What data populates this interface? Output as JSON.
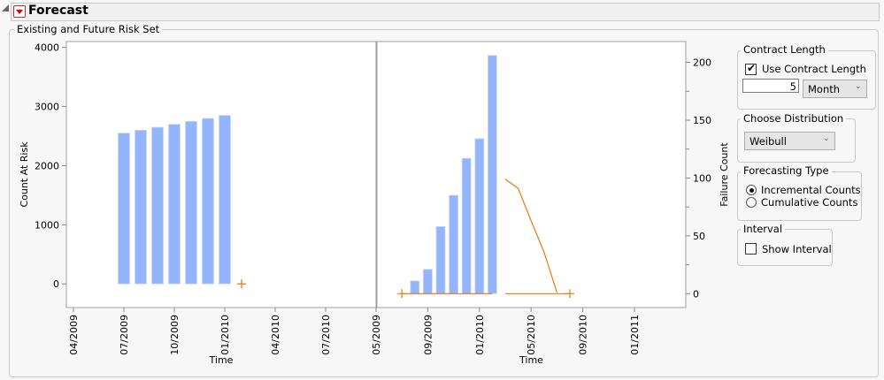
{
  "header": {
    "title": "Forecast"
  },
  "group_title": "Existing and Future Risk Set",
  "controls": {
    "contract_length": {
      "title": "Contract Length",
      "use_label": "Use Contract Length",
      "checked": true,
      "value": "5",
      "unit": "Month"
    },
    "distribution": {
      "title": "Choose Distribution",
      "selected": "Weibull"
    },
    "forecasting_type": {
      "title": "Forecasting Type",
      "options": [
        "Incremental Counts",
        "Cumulative Counts"
      ],
      "selected": "Incremental Counts"
    },
    "interval": {
      "title": "Interval",
      "label": "Show Interval",
      "checked": false
    }
  },
  "colors": {
    "bar": "#94b4fb",
    "forecast": "#e8790c",
    "axis_text": "#000000"
  },
  "chart_data": [
    {
      "type": "bar",
      "xlabel": "Time",
      "ylabel": "Count At Risk",
      "ylim": [
        -400,
        4100
      ],
      "yticks": [
        0,
        1000,
        2000,
        3000,
        4000
      ],
      "xticks": [
        "04/2009",
        "07/2009",
        "10/2009",
        "01/2010",
        "04/2010",
        "07/2010"
      ],
      "categories": [
        "07/2009",
        "08/2009",
        "09/2009",
        "10/2009",
        "11/2009",
        "12/2009",
        "01/2010"
      ],
      "values": [
        2550,
        2600,
        2650,
        2700,
        2750,
        2800,
        2850
      ],
      "markers": [
        {
          "x": "02/2010",
          "y": 0
        }
      ]
    },
    {
      "type": "bar",
      "xlabel": "Time",
      "ylabel": "Failure Count",
      "ylim": [
        -12,
        218
      ],
      "yticks": [
        0,
        50,
        100,
        150,
        200
      ],
      "xticks": [
        "05/2009",
        "09/2009",
        "01/2010",
        "05/2010",
        "09/2010",
        "01/2011"
      ],
      "categories": [
        "08/2009",
        "09/2009",
        "10/2009",
        "11/2009",
        "12/2009",
        "01/2010",
        "02/2010"
      ],
      "values": [
        11,
        21,
        58,
        85,
        117,
        134,
        206
      ],
      "forecast": {
        "x": [
          "03/2010",
          "04/2010",
          "05/2010",
          "06/2010",
          "07/2010"
        ],
        "values": [
          99,
          91,
          63,
          36,
          1
        ]
      },
      "zero_lines": [
        [
          "07/2009",
          "02/2010"
        ],
        [
          "03/2010",
          "08/2010"
        ]
      ],
      "markers": [
        {
          "x": "07/2009",
          "y": 0
        },
        {
          "x": "08/2010",
          "y": 0
        }
      ]
    }
  ]
}
